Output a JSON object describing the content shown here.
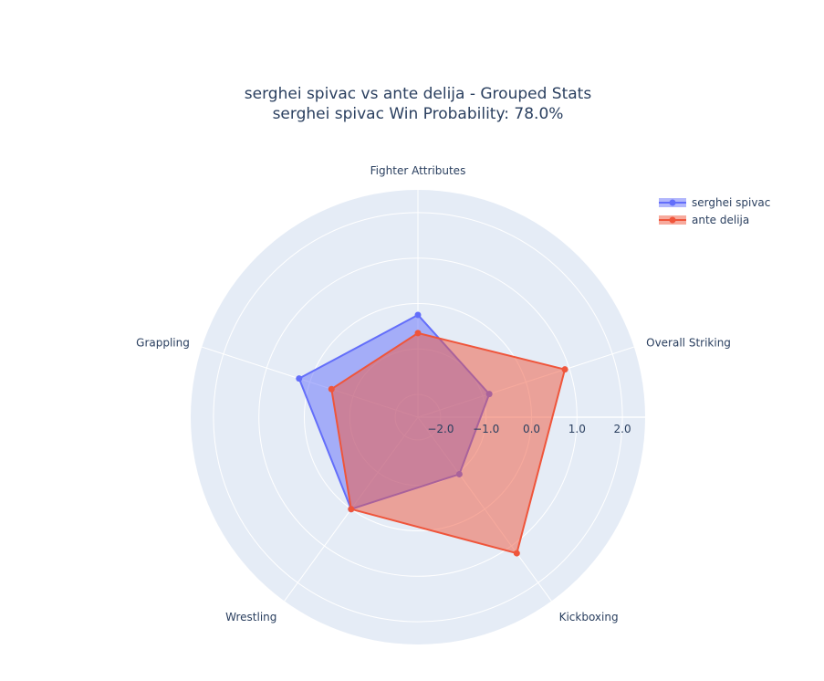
{
  "title": {
    "line1": "serghei spivac vs ante delija - Grouped Stats",
    "line2": "serghei spivac Win Probability: 78.0%"
  },
  "chart_data": {
    "type": "radar",
    "categories": [
      "Fighter Attributes",
      "Overall Striking",
      "Kickboxing",
      "Wrestling",
      "Grappling"
    ],
    "radial_range": [
      -2.5,
      2.5
    ],
    "radial_ticks": [
      -2.0,
      -1.0,
      0.0,
      1.0,
      2.0
    ],
    "radial_tick_labels": [
      "−2.0",
      "−1.0",
      "0.0",
      "1.0",
      "2.0"
    ],
    "grid": true,
    "legend_position": "top-right",
    "series": [
      {
        "name": "serghei spivac",
        "color": "#636efa",
        "fill": "rgba(99,110,250,0.5)",
        "values": [
          -0.25,
          -0.85,
          -0.95,
          0.0,
          0.25
        ]
      },
      {
        "name": "ante delija",
        "color": "#ef553b",
        "fill": "rgba(239,85,59,0.5)",
        "values": [
          -0.65,
          0.9,
          1.2,
          0.0,
          -0.5
        ]
      }
    ]
  }
}
